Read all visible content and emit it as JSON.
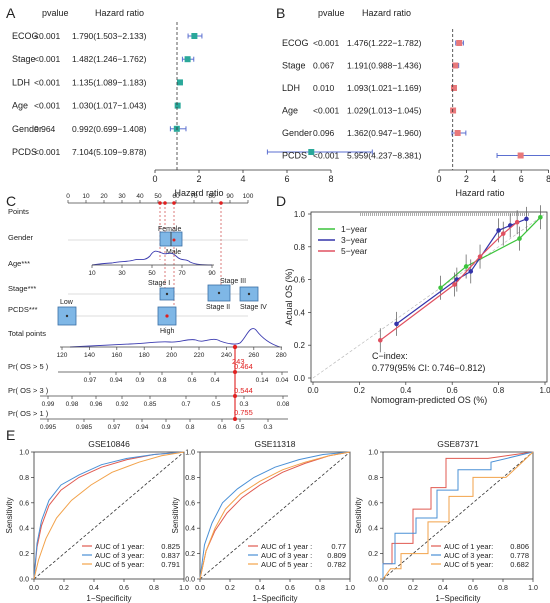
{
  "figure": {
    "panelA": {
      "letter": "A",
      "head_p": "pvalue",
      "head_hr": "Hazard ratio",
      "xlabel": "Hazard ratio",
      "ticks": [
        "0",
        "2",
        "4",
        "6",
        "8"
      ],
      "rows": [
        {
          "label": "ECOG",
          "p": "<0.001",
          "hr_text": "1.790(1.503−2.133)",
          "hr": 1.79,
          "lo": 1.503,
          "hi": 2.133
        },
        {
          "label": "Stage",
          "p": "<0.001",
          "hr_text": "1.482(1.246−1.762)",
          "hr": 1.482,
          "lo": 1.246,
          "hi": 1.762
        },
        {
          "label": "LDH",
          "p": "<0.001",
          "hr_text": "1.135(1.089−1.183)",
          "hr": 1.135,
          "lo": 1.089,
          "hi": 1.183
        },
        {
          "label": "Age",
          "p": "<0.001",
          "hr_text": "1.030(1.017−1.043)",
          "hr": 1.03,
          "lo": 1.017,
          "hi": 1.043
        },
        {
          "label": "Gender",
          "p": "0.964",
          "hr_text": "0.992(0.699−1.408)",
          "hr": 0.992,
          "lo": 0.699,
          "hi": 1.408
        },
        {
          "label": "PCDS",
          "p": "<0.001",
          "hr_text": "7.104(5.109−9.878)",
          "hr": 7.104,
          "lo": 5.109,
          "hi": 9.878
        }
      ]
    },
    "panelB": {
      "letter": "B",
      "head_p": "pvalue",
      "head_hr": "Hazard ratio",
      "xlabel": "Hazard ratio",
      "ticks": [
        "0",
        "2",
        "4",
        "6",
        "8"
      ],
      "rows": [
        {
          "label": "ECOG",
          "p": "<0.001",
          "hr_text": "1.476(1.222−1.782)",
          "hr": 1.476,
          "lo": 1.222,
          "hi": 1.782
        },
        {
          "label": "Stage",
          "p": "0.067",
          "hr_text": "1.191(0.988−1.436)",
          "hr": 1.191,
          "lo": 0.988,
          "hi": 1.436
        },
        {
          "label": "LDH",
          "p": "0.010",
          "hr_text": "1.093(1.021−1.169)",
          "hr": 1.093,
          "lo": 1.021,
          "hi": 1.169
        },
        {
          "label": "Age",
          "p": "<0.001",
          "hr_text": "1.029(1.013−1.045)",
          "hr": 1.029,
          "lo": 1.013,
          "hi": 1.045
        },
        {
          "label": "Gender",
          "p": "0.096",
          "hr_text": "1.362(0.947−1.960)",
          "hr": 1.362,
          "lo": 0.947,
          "hi": 1.96
        },
        {
          "label": "PCDS",
          "p": "<0.001",
          "hr_text": "5.959(4.237−8.381)",
          "hr": 5.959,
          "lo": 4.237,
          "hi": 8.381
        }
      ]
    },
    "panelC": {
      "letter": "C",
      "row_labels": [
        "Points",
        "Gender",
        "Age***",
        "Stage***",
        "PCDS***",
        "Total points",
        "Pr( OS > 5 )",
        "Pr( OS > 3 )",
        "Pr( OS > 1 )"
      ],
      "points_ticks": [
        "0",
        "10",
        "20",
        "30",
        "40",
        "50",
        "60",
        "70",
        "80",
        "90",
        "100"
      ],
      "gender_labels": [
        "Female",
        "Male"
      ],
      "age_ticks": [
        "10",
        "30",
        "50",
        "70",
        "90"
      ],
      "stage_labels": [
        "Stage I",
        "Stage III",
        "Stage II",
        "Stage IV"
      ],
      "pcds_labels": [
        "Low",
        "High"
      ],
      "total_ticks": [
        "120",
        "140",
        "160",
        "180",
        "200",
        "220",
        "240",
        "260",
        "280"
      ],
      "total_value": "243",
      "pr5_ticks": [
        "0.97",
        "0.94",
        "0.9",
        "0.8",
        "0.6",
        "0.4",
        "0.14",
        "0.04"
      ],
      "pr5_value": "0.464",
      "pr3_ticks": [
        "0.99",
        "0.98",
        "0.96",
        "0.92",
        "0.85",
        "0.7",
        "0.5",
        "0.3",
        "0.08"
      ],
      "pr3_value": "0.544",
      "pr1_ticks": [
        "0.995",
        "0.985",
        "0.97",
        "0.94",
        "0.9",
        "0.8",
        "0.6",
        "0.5",
        "0.3"
      ],
      "pr1_value": "0.755"
    },
    "panelD": {
      "letter": "D",
      "xlabel": "Nomogram-predicted OS (%)",
      "ylabel": "Actual OS (%)",
      "ticks": [
        "0.0",
        "0.2",
        "0.4",
        "0.6",
        "0.8",
        "1.0"
      ],
      "legend": [
        "1−year",
        "3−year",
        "5−year"
      ],
      "colors": [
        "#3cc43c",
        "#3333aa",
        "#e05060"
      ],
      "cindex_label": "C−index:",
      "cindex_value": "0.779(95% CI: 0.746−0.812)",
      "series": [
        {
          "name": "1−year",
          "x": [
            0.55,
            0.66,
            0.89,
            0.98
          ],
          "y": [
            0.55,
            0.68,
            0.85,
            0.98
          ]
        },
        {
          "name": "3−year",
          "x": [
            0.36,
            0.62,
            0.68,
            0.8,
            0.85,
            0.92
          ],
          "y": [
            0.33,
            0.6,
            0.65,
            0.9,
            0.93,
            0.97
          ]
        },
        {
          "name": "5−year",
          "x": [
            0.29,
            0.61,
            0.72,
            0.82,
            0.88
          ],
          "y": [
            0.23,
            0.57,
            0.74,
            0.88,
            0.95
          ]
        }
      ]
    },
    "panelE": {
      "letter": "E",
      "xlabel": "1−Specificity",
      "ylabel": "Sensitivity",
      "ticks": [
        "0.0",
        "0.2",
        "0.4",
        "0.6",
        "0.8",
        "1.0"
      ],
      "colors": [
        "#e05a50",
        "#4a90d6",
        "#f2a24a"
      ],
      "plots": [
        {
          "title": "GSE10846",
          "auc": [
            [
              "AUC of 1 year:",
              "0.825"
            ],
            [
              "AUC of 3 year:",
              "0.837"
            ],
            [
              "AUC of 5 year:",
              "0.791"
            ]
          ]
        },
        {
          "title": "GSE11318",
          "auc": [
            [
              "AUC of 1 year :",
              "0.77"
            ],
            [
              "AUC of 3 year :",
              "0.809"
            ],
            [
              "AUC of 5 year :",
              "0.782"
            ]
          ]
        },
        {
          "title": "GSE87371",
          "auc": [
            [
              "AUC of 1 year:",
              "0.806"
            ],
            [
              "AUC of 3 year:",
              "0.778"
            ],
            [
              "AUC of 5 year:",
              "0.682"
            ]
          ]
        }
      ]
    }
  }
}
